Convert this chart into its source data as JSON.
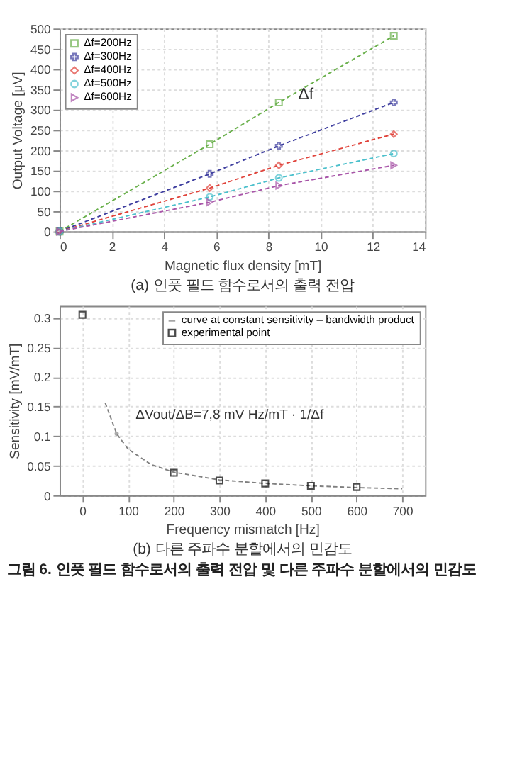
{
  "chart_data": [
    {
      "type": "line",
      "title": "(a) 인풋 필드 함수로서의 출력 전압",
      "xlabel": "Magnetic flux density [mT]",
      "ylabel": "Output Voltage [μV]",
      "x": [
        0,
        5.75,
        8.4,
        12.8
      ],
      "xlim": [
        0,
        14
      ],
      "xticks": [
        0,
        2,
        4,
        6,
        8,
        10,
        12,
        14
      ],
      "ylim": [
        0,
        500
      ],
      "yticks": [
        0,
        50,
        100,
        150,
        200,
        250,
        300,
        350,
        400,
        450,
        500
      ],
      "grid": true,
      "legend": "top left",
      "line_style": "dashed",
      "annotations": [
        "Δf"
      ],
      "series": [
        {
          "name": "Δf=200Hz",
          "color": "#6ab04c",
          "marker": "square",
          "values": [
            0,
            215,
            318,
            482
          ]
        },
        {
          "name": "Δf=300Hz",
          "color": "#3f3f9f",
          "marker": "cross",
          "values": [
            0,
            142,
            211,
            318
          ]
        },
        {
          "name": "Δf=400Hz",
          "color": "#e0443c",
          "marker": "diamond",
          "values": [
            0,
            107,
            163,
            240
          ]
        },
        {
          "name": "Δf=500Hz",
          "color": "#4cc0cc",
          "marker": "circle",
          "values": [
            0,
            85,
            132,
            192
          ]
        },
        {
          "name": "Δf=600Hz",
          "color": "#a855a8",
          "marker": "triangle",
          "values": [
            0,
            72,
            113,
            163
          ]
        }
      ]
    },
    {
      "type": "scatter",
      "title": "(b) 다른 주파수 분할에서의 민감도",
      "xlabel": "Frequency mismatch [Hz]",
      "ylabel": "Sensitivity [mV/mT]",
      "xlim": [
        -50,
        750
      ],
      "xticks": [
        0,
        100,
        200,
        300,
        400,
        500,
        600,
        700
      ],
      "ylim": [
        0,
        0.32
      ],
      "yticks": [
        0,
        0.05,
        0.1,
        0.15,
        0.2,
        0.25,
        0.3
      ],
      "grid": true,
      "legend": "top right",
      "annotations": [
        {
          "text": "ΔVout/ΔB=7,8 mV Hz/mT · 1/Δf",
          "x": 75,
          "y": 0.104
        },
        "그림 6. 인풋 필드 함수로서의 출력 전압 및 다른 주파수 분할에서의 민감도"
      ],
      "series": [
        {
          "name": "curve at constant sensitivity – bandwidth product",
          "type": "line",
          "line_style": "dashed",
          "marker": "none",
          "color": "#808080",
          "x": [
            50,
            75,
            100,
            150,
            200,
            300,
            400,
            500,
            600,
            700
          ],
          "values": [
            0.156,
            0.104,
            0.078,
            0.052,
            0.039,
            0.026,
            0.02,
            0.016,
            0.013,
            0.011
          ]
        },
        {
          "name": "experimental point",
          "type": "scatter",
          "marker": "square",
          "color": "#000000",
          "x": [
            0,
            200,
            300,
            400,
            500,
            600
          ],
          "values": [
            0.305,
            0.038,
            0.025,
            0.02,
            0.016,
            0.014
          ]
        }
      ]
    }
  ]
}
